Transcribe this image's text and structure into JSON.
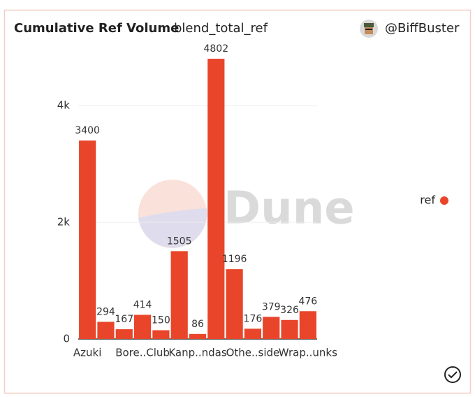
{
  "chart_data": {
    "type": "bar",
    "title": "Cumulative Ref Volume",
    "subtitle": "blend_total_ref",
    "author": "@BiffBuster",
    "watermark": "Dune",
    "categories": [
      "Azuki",
      null,
      null,
      "Bore..Club",
      null,
      null,
      "Kanp..ndas",
      null,
      null,
      "Othe..side",
      null,
      null,
      "Wrap..unks"
    ],
    "series": [
      {
        "name": "ref",
        "color": "#e8452a",
        "values": [
          3400,
          294,
          167,
          414,
          150,
          1505,
          86,
          4802,
          1196,
          176,
          379,
          326,
          476
        ]
      }
    ],
    "ylim": [
      0,
      5000
    ],
    "yticks": [
      0,
      {
        "value": 2000,
        "label": "2k"
      },
      {
        "value": 4000,
        "label": "4k"
      }
    ],
    "grid": true,
    "legend": "right"
  }
}
